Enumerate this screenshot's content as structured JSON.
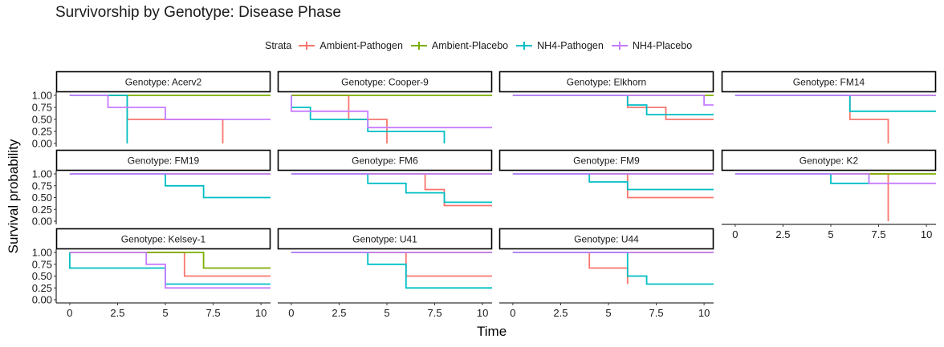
{
  "title": "Survivorship by Genotype: Disease Phase",
  "legend": {
    "title": "Strata",
    "items": [
      {
        "label": "Ambient-Pathogen",
        "color": "#F8766D"
      },
      {
        "label": "Ambient-Placebo",
        "color": "#7CAE00"
      },
      {
        "label": "NH4-Pathogen",
        "color": "#00BFC4"
      },
      {
        "label": "NH4-Placebo",
        "color": "#C77CFF"
      }
    ]
  },
  "chart_data": {
    "type": "line",
    "subtype": "kaplan-meier step curves, faceted",
    "xlabel": "Time",
    "ylabel": "Survival probability",
    "xlim": [
      -0.5,
      10.5
    ],
    "ylim": [
      0,
      1
    ],
    "x_ticks": [
      "0",
      "2.5",
      "5",
      "7.5",
      "10"
    ],
    "y_ticks": [
      "0.00",
      "0.25",
      "0.50",
      "0.75",
      "1.00"
    ],
    "legend_position": "top",
    "series_names": [
      "Ambient-Pathogen",
      "Ambient-Placebo",
      "NH4-Pathogen",
      "NH4-Placebo"
    ],
    "facets": [
      {
        "label": "Genotype: Acerv2",
        "series": [
          {
            "name": "Ambient-Pathogen",
            "points": [
              [
                0,
                1
              ],
              [
                3,
                1
              ],
              [
                3,
                0.5
              ],
              [
                8,
                0.5
              ],
              [
                8,
                0
              ]
            ]
          },
          {
            "name": "Ambient-Placebo",
            "points": [
              [
                0,
                1
              ],
              [
                10.5,
                1
              ]
            ]
          },
          {
            "name": "NH4-Pathogen",
            "points": [
              [
                0,
                1
              ],
              [
                3,
                1
              ],
              [
                3,
                0
              ]
            ]
          },
          {
            "name": "NH4-Placebo",
            "points": [
              [
                0,
                1
              ],
              [
                2,
                1
              ],
              [
                2,
                0.75
              ],
              [
                5,
                0.75
              ],
              [
                5,
                0.5
              ],
              [
                10.5,
                0.5
              ]
            ]
          }
        ]
      },
      {
        "label": "Genotype: Cooper-9",
        "series": [
          {
            "name": "Ambient-Pathogen",
            "points": [
              [
                0,
                1
              ],
              [
                3,
                1
              ],
              [
                3,
                0.5
              ],
              [
                5,
                0.5
              ],
              [
                5,
                0
              ]
            ]
          },
          {
            "name": "Ambient-Placebo",
            "points": [
              [
                0,
                1
              ],
              [
                10.5,
                1
              ]
            ]
          },
          {
            "name": "NH4-Pathogen",
            "points": [
              [
                0,
                1
              ],
              [
                0,
                0.75
              ],
              [
                1,
                0.75
              ],
              [
                1,
                0.5
              ],
              [
                4,
                0.5
              ],
              [
                4,
                0.25
              ],
              [
                8,
                0.25
              ],
              [
                8,
                0
              ]
            ]
          },
          {
            "name": "NH4-Placebo",
            "points": [
              [
                0,
                1
              ],
              [
                0,
                0.67
              ],
              [
                4,
                0.67
              ],
              [
                4,
                0.33
              ],
              [
                10.5,
                0.33
              ]
            ]
          }
        ]
      },
      {
        "label": "Genotype: Elkhorn",
        "series": [
          {
            "name": "Ambient-Pathogen",
            "points": [
              [
                0,
                1
              ],
              [
                6,
                1
              ],
              [
                6,
                0.75
              ],
              [
                8,
                0.75
              ],
              [
                8,
                0.5
              ],
              [
                10.5,
                0.5
              ]
            ]
          },
          {
            "name": "Ambient-Placebo",
            "points": [
              [
                0,
                1
              ],
              [
                10.5,
                1
              ]
            ]
          },
          {
            "name": "NH4-Pathogen",
            "points": [
              [
                0,
                1
              ],
              [
                6,
                1
              ],
              [
                6,
                0.8
              ],
              [
                7,
                0.8
              ],
              [
                7,
                0.6
              ],
              [
                10.5,
                0.6
              ]
            ]
          },
          {
            "name": "NH4-Placebo",
            "points": [
              [
                0,
                1
              ],
              [
                10,
                1
              ],
              [
                10,
                0.8
              ],
              [
                10.5,
                0.8
              ]
            ]
          }
        ]
      },
      {
        "label": "Genotype: FM14",
        "series": [
          {
            "name": "Ambient-Pathogen",
            "points": [
              [
                0,
                1
              ],
              [
                6,
                1
              ],
              [
                6,
                0.5
              ],
              [
                8,
                0.5
              ],
              [
                8,
                0
              ]
            ]
          },
          {
            "name": "Ambient-Placebo",
            "points": [
              [
                0,
                1
              ],
              [
                10.5,
                1
              ]
            ]
          },
          {
            "name": "NH4-Pathogen",
            "points": [
              [
                0,
                1
              ],
              [
                6,
                1
              ],
              [
                6,
                0.67
              ],
              [
                10.5,
                0.67
              ]
            ]
          },
          {
            "name": "NH4-Placebo",
            "points": [
              [
                0,
                1
              ],
              [
                10.5,
                1
              ]
            ]
          }
        ]
      },
      {
        "label": "Genotype: FM19",
        "series": [
          {
            "name": "Ambient-Placebo",
            "points": [
              [
                0,
                1
              ],
              [
                10.5,
                1
              ]
            ]
          },
          {
            "name": "NH4-Pathogen",
            "points": [
              [
                0,
                1
              ],
              [
                5,
                1
              ],
              [
                5,
                0.75
              ],
              [
                7,
                0.75
              ],
              [
                7,
                0.5
              ],
              [
                10.5,
                0.5
              ]
            ]
          },
          {
            "name": "NH4-Placebo",
            "points": [
              [
                0,
                1
              ],
              [
                10.5,
                1
              ]
            ]
          }
        ]
      },
      {
        "label": "Genotype: FM6",
        "series": [
          {
            "name": "Ambient-Pathogen",
            "points": [
              [
                0,
                1
              ],
              [
                7,
                1
              ],
              [
                7,
                0.67
              ],
              [
                8,
                0.67
              ],
              [
                8,
                0.33
              ],
              [
                10.5,
                0.33
              ]
            ]
          },
          {
            "name": "Ambient-Placebo",
            "points": [
              [
                0,
                1
              ],
              [
                10.5,
                1
              ]
            ]
          },
          {
            "name": "NH4-Pathogen",
            "points": [
              [
                0,
                1
              ],
              [
                4,
                1
              ],
              [
                4,
                0.8
              ],
              [
                6,
                0.8
              ],
              [
                6,
                0.6
              ],
              [
                8,
                0.6
              ],
              [
                8,
                0.4
              ],
              [
                10.5,
                0.4
              ]
            ]
          },
          {
            "name": "NH4-Placebo",
            "points": [
              [
                0,
                1
              ],
              [
                10.5,
                1
              ]
            ]
          }
        ]
      },
      {
        "label": "Genotype: FM9",
        "series": [
          {
            "name": "Ambient-Pathogen",
            "points": [
              [
                0,
                1
              ],
              [
                6,
                1
              ],
              [
                6,
                0.5
              ],
              [
                10.5,
                0.5
              ]
            ]
          },
          {
            "name": "Ambient-Placebo",
            "points": [
              [
                0,
                1
              ],
              [
                10.5,
                1
              ]
            ]
          },
          {
            "name": "NH4-Pathogen",
            "points": [
              [
                0,
                1
              ],
              [
                4,
                1
              ],
              [
                4,
                0.83
              ],
              [
                6,
                0.83
              ],
              [
                6,
                0.67
              ],
              [
                10.5,
                0.67
              ]
            ]
          },
          {
            "name": "NH4-Placebo",
            "points": [
              [
                0,
                1
              ],
              [
                10.5,
                1
              ]
            ]
          }
        ]
      },
      {
        "label": "Genotype: K2",
        "series": [
          {
            "name": "Ambient-Pathogen",
            "points": [
              [
                0,
                1
              ],
              [
                8,
                1
              ],
              [
                8,
                0
              ]
            ]
          },
          {
            "name": "Ambient-Placebo",
            "points": [
              [
                0,
                1
              ],
              [
                10.5,
                1
              ]
            ]
          },
          {
            "name": "NH4-Pathogen",
            "points": [
              [
                0,
                1
              ],
              [
                5,
                1
              ],
              [
                5,
                0.8
              ],
              [
                7,
                0.8
              ],
              [
                7,
                1
              ]
            ]
          },
          {
            "name": "NH4-Placebo",
            "points": [
              [
                0,
                1
              ],
              [
                7,
                1
              ],
              [
                7,
                0.8
              ],
              [
                10.5,
                0.8
              ]
            ]
          }
        ]
      },
      {
        "label": "Genotype: Kelsey-1",
        "series": [
          {
            "name": "Ambient-Pathogen",
            "points": [
              [
                0,
                1
              ],
              [
                6,
                1
              ],
              [
                6,
                0.5
              ],
              [
                10.5,
                0.5
              ]
            ]
          },
          {
            "name": "Ambient-Placebo",
            "points": [
              [
                0,
                1
              ],
              [
                7,
                1
              ],
              [
                7,
                0.67
              ],
              [
                10.5,
                0.67
              ]
            ]
          },
          {
            "name": "NH4-Pathogen",
            "points": [
              [
                0,
                1
              ],
              [
                0,
                0.67
              ],
              [
                5,
                0.67
              ],
              [
                5,
                0.33
              ],
              [
                10.5,
                0.33
              ]
            ]
          },
          {
            "name": "NH4-Placebo",
            "points": [
              [
                0,
                1
              ],
              [
                4,
                1
              ],
              [
                4,
                0.75
              ],
              [
                5,
                0.75
              ],
              [
                5,
                0.25
              ],
              [
                10.5,
                0.25
              ]
            ]
          }
        ]
      },
      {
        "label": "Genotype: U41",
        "series": [
          {
            "name": "Ambient-Pathogen",
            "points": [
              [
                0,
                1
              ],
              [
                6,
                1
              ],
              [
                6,
                0.5
              ],
              [
                10.5,
                0.5
              ]
            ]
          },
          {
            "name": "Ambient-Placebo",
            "points": [
              [
                0,
                1
              ],
              [
                10.5,
                1
              ]
            ]
          },
          {
            "name": "NH4-Pathogen",
            "points": [
              [
                0,
                1
              ],
              [
                4,
                1
              ],
              [
                4,
                0.75
              ],
              [
                6,
                0.75
              ],
              [
                6,
                0.25
              ],
              [
                10.5,
                0.25
              ]
            ]
          },
          {
            "name": "NH4-Placebo",
            "points": [
              [
                0,
                1
              ],
              [
                10.5,
                1
              ]
            ]
          }
        ]
      },
      {
        "label": "Genotype: U44",
        "series": [
          {
            "name": "Ambient-Pathogen",
            "points": [
              [
                0,
                1
              ],
              [
                4,
                1
              ],
              [
                4,
                0.67
              ],
              [
                6,
                0.67
              ],
              [
                6,
                0.33
              ]
            ]
          },
          {
            "name": "Ambient-Placebo",
            "points": [
              [
                0,
                1
              ],
              [
                10.5,
                1
              ]
            ]
          },
          {
            "name": "NH4-Pathogen",
            "points": [
              [
                0,
                1
              ],
              [
                6,
                1
              ],
              [
                6,
                0.5
              ],
              [
                7,
                0.5
              ],
              [
                7,
                0.33
              ],
              [
                10.5,
                0.33
              ]
            ]
          },
          {
            "name": "NH4-Placebo",
            "points": [
              [
                0,
                1
              ],
              [
                10.5,
                1
              ]
            ]
          }
        ]
      }
    ]
  }
}
